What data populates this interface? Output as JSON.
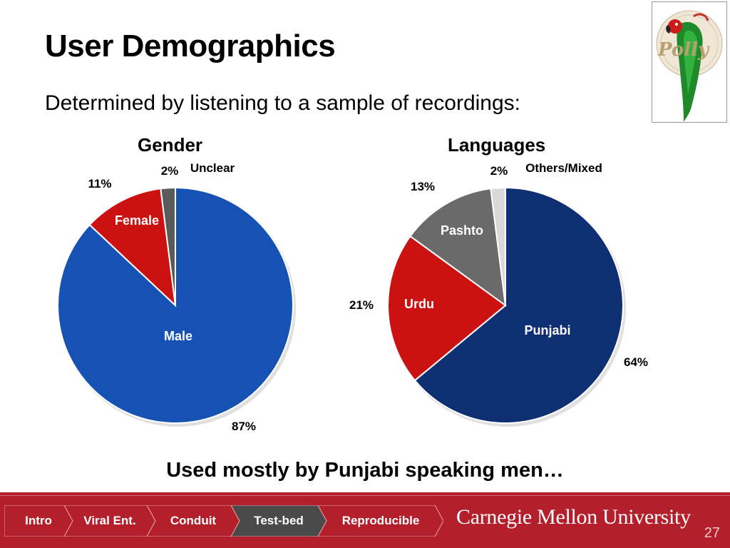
{
  "slide": {
    "title": "User Demographics",
    "subtitle": "Determined by listening to a sample of recordings:",
    "conclusion": "Used mostly by Punjabi speaking men…",
    "page_number": "27"
  },
  "logo": {
    "text": "Polly",
    "icon": "parrot-logo"
  },
  "chart_data": [
    {
      "type": "pie",
      "title": "Gender",
      "slices": [
        {
          "label": "Male",
          "value": 87,
          "percent_label": "87%",
          "color": "#1652b3"
        },
        {
          "label": "Female",
          "value": 11,
          "percent_label": "11%",
          "color": "#cc1111"
        },
        {
          "label": "Unclear",
          "value": 2,
          "percent_label": "2%",
          "color": "#5a5a5a"
        }
      ]
    },
    {
      "type": "pie",
      "title": "Languages",
      "slices": [
        {
          "label": "Punjabi",
          "value": 64,
          "percent_label": "64%",
          "color": "#0f2f73"
        },
        {
          "label": "Urdu",
          "value": 21,
          "percent_label": "21%",
          "color": "#cc1111"
        },
        {
          "label": "Pashto",
          "value": 13,
          "percent_label": "13%",
          "color": "#6a6a6a"
        },
        {
          "label": "Others/Mixed",
          "value": 2,
          "percent_label": "2%",
          "color": "#d9d9d9"
        }
      ]
    }
  ],
  "nav": {
    "items": [
      {
        "label": "Intro",
        "active": false
      },
      {
        "label": "Viral Ent.",
        "active": false
      },
      {
        "label": "Conduit",
        "active": false
      },
      {
        "label": "Test-bed",
        "active": true
      },
      {
        "label": "Reproducible",
        "active": false
      }
    ],
    "active_color": "#4a4a4a"
  },
  "footer": {
    "org": "Carnegie Mellon University",
    "color": "#b3202c"
  }
}
